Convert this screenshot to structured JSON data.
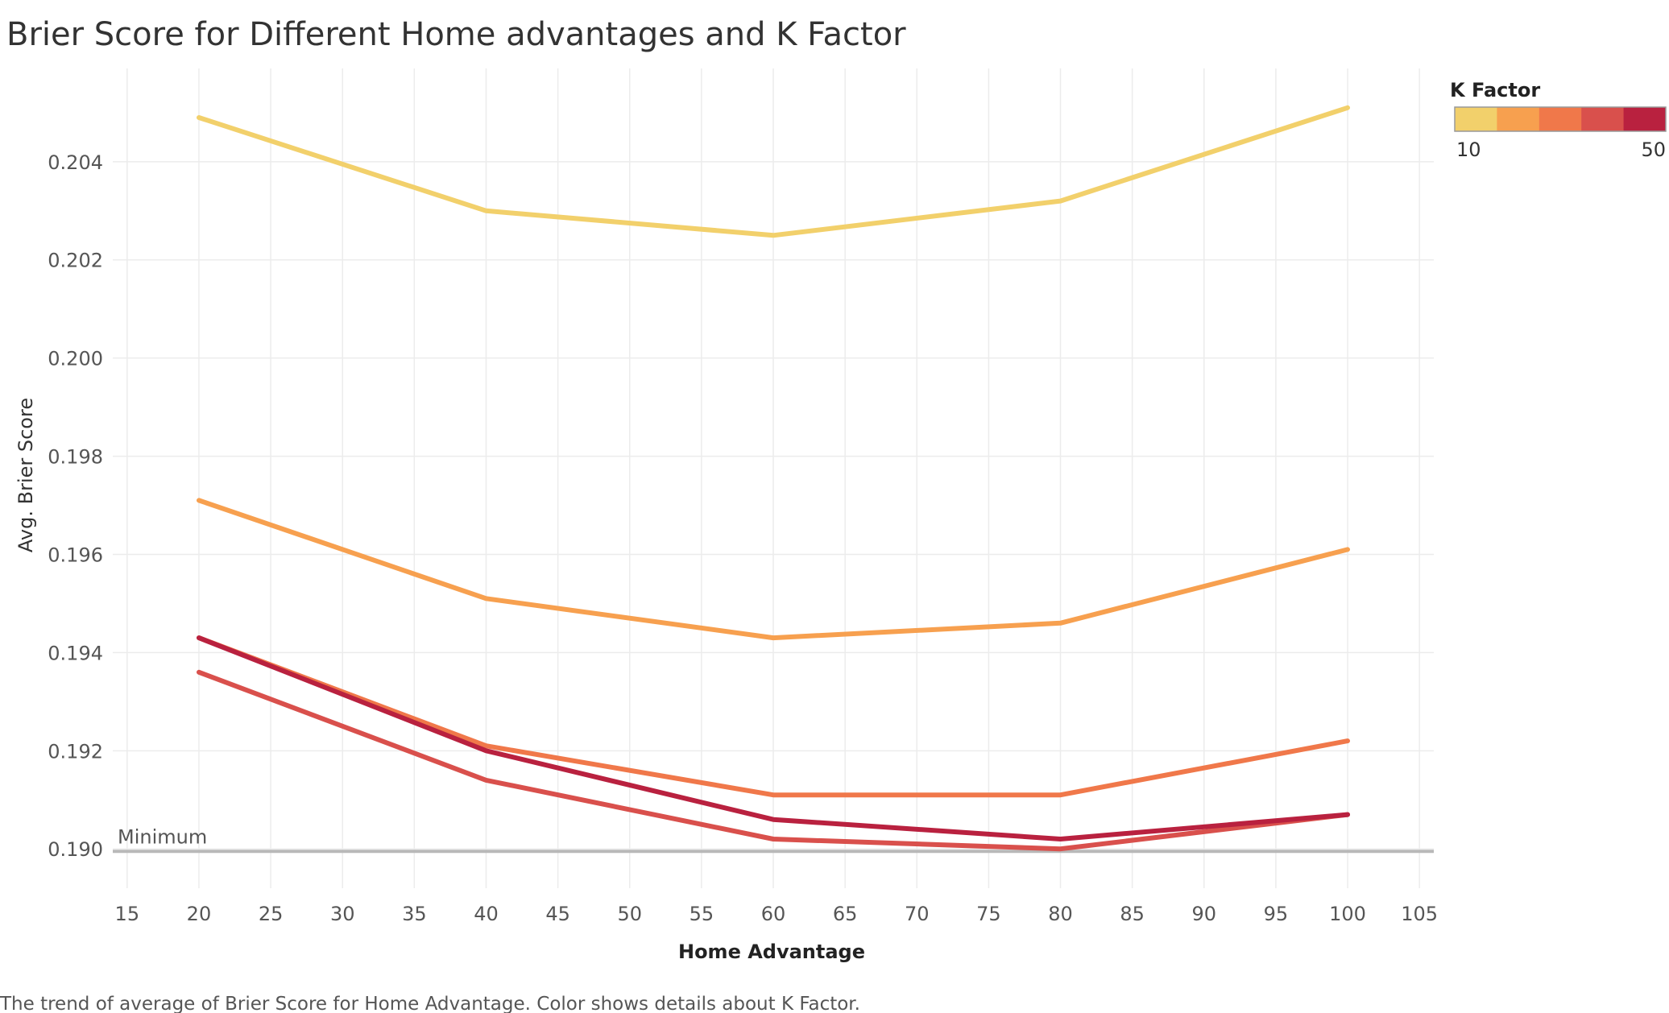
{
  "chart_data": {
    "type": "line",
    "title": "Brier Score for Different Home advantages and K Factor",
    "xlabel": "Home Advantage",
    "ylabel": "Avg. Brier Score",
    "caption": "The trend of average of Brier Score for Home Advantage.  Color shows details about K Factor.",
    "xlim": [
      14,
      106
    ],
    "ylim": [
      0.1892,
      0.2059
    ],
    "x_ticks": [
      15,
      20,
      25,
      30,
      35,
      40,
      45,
      50,
      55,
      60,
      65,
      70,
      75,
      80,
      85,
      90,
      95,
      100,
      105
    ],
    "y_ticks": [
      0.19,
      0.192,
      0.194,
      0.196,
      0.198,
      0.2,
      0.202,
      0.204
    ],
    "y_tick_labels": [
      "0.190",
      "0.192",
      "0.194",
      "0.196",
      "0.198",
      "0.200",
      "0.202",
      "0.204"
    ],
    "grid": true,
    "x": [
      20,
      40,
      60,
      80,
      100
    ],
    "series": [
      {
        "color": "#F2D06B",
        "values": [
          0.2049,
          0.203,
          0.2025,
          0.2032,
          0.2051
        ]
      },
      {
        "color": "#F7A04F",
        "values": [
          0.1971,
          0.1951,
          0.1943,
          0.1946,
          0.1961
        ]
      },
      {
        "color": "#F0784A",
        "values": [
          0.1943,
          0.1921,
          0.1911,
          0.1911,
          0.1922
        ]
      },
      {
        "color": "#D9504C",
        "values": [
          0.1936,
          0.1914,
          0.1902,
          0.19,
          0.1907
        ]
      },
      {
        "color": "#B9213F",
        "values": [
          0.1943,
          0.192,
          0.1906,
          0.1902,
          0.1907
        ]
      }
    ],
    "reference_line": {
      "label": "Minimum",
      "value": 0.18995,
      "color": "#b8b8b8"
    },
    "legend": {
      "title": "K Factor",
      "placement": "top-right",
      "min_label": "10",
      "max_label": "50",
      "colors": [
        "#F2D06B",
        "#F7A04F",
        "#F0784A",
        "#D9504C",
        "#B9213F"
      ]
    }
  }
}
